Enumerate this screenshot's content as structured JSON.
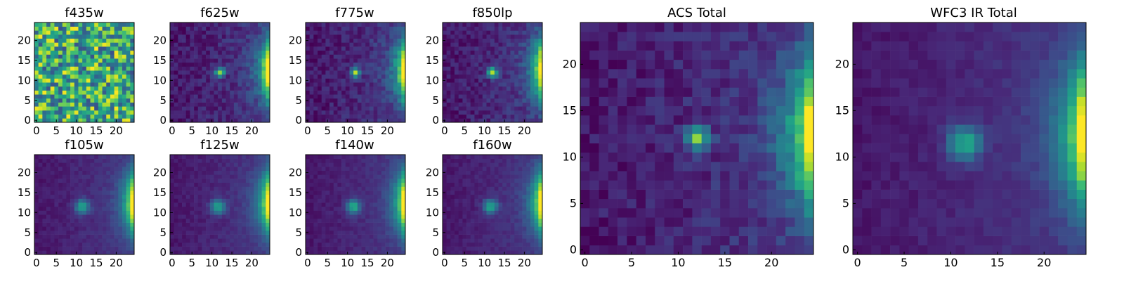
{
  "chart_data": [
    {
      "type": "heatmap",
      "title": "f435w",
      "pattern": "noise",
      "source_x": 12.5,
      "source_y": 11.5,
      "x_ticks": [
        "0",
        "5",
        "10",
        "15",
        "20"
      ],
      "y_ticks": [
        "0",
        "5",
        "10",
        "15",
        "20"
      ],
      "xlim": [
        -0.5,
        24.5
      ],
      "ylim": [
        -0.5,
        24.5
      ],
      "grid_size": 25,
      "colormap": "viridis"
    },
    {
      "type": "heatmap",
      "title": "f625w",
      "pattern": "point_source_edge",
      "source_x": 12.5,
      "source_y": 12.5,
      "x_ticks": [
        "0",
        "5",
        "10",
        "15",
        "20"
      ],
      "y_ticks": [
        "0",
        "5",
        "10",
        "15",
        "20"
      ],
      "xlim": [
        -0.5,
        24.5
      ],
      "ylim": [
        -0.5,
        24.5
      ],
      "grid_size": 25,
      "colormap": "viridis"
    },
    {
      "type": "heatmap",
      "title": "f775w",
      "pattern": "point_source_edge",
      "source_x": 12.5,
      "source_y": 12.5,
      "x_ticks": [
        "0",
        "5",
        "10",
        "15",
        "20"
      ],
      "y_ticks": [
        "0",
        "5",
        "10",
        "15",
        "20"
      ],
      "xlim": [
        -0.5,
        24.5
      ],
      "ylim": [
        -0.5,
        24.5
      ],
      "grid_size": 25,
      "colormap": "viridis"
    },
    {
      "type": "heatmap",
      "title": "f850lp",
      "pattern": "point_source_edge",
      "source_x": 12.5,
      "source_y": 12.5,
      "x_ticks": [
        "0",
        "5",
        "10",
        "15",
        "20"
      ],
      "y_ticks": [
        "0",
        "5",
        "10",
        "15",
        "20"
      ],
      "xlim": [
        -0.5,
        24.5
      ],
      "ylim": [
        -0.5,
        24.5
      ],
      "grid_size": 25,
      "colormap": "viridis"
    },
    {
      "type": "heatmap",
      "title": "f105w",
      "pattern": "point_source_edge",
      "source_x": 12,
      "source_y": 12,
      "x_ticks": [
        "0",
        "5",
        "10",
        "15",
        "20"
      ],
      "y_ticks": [
        "0",
        "5",
        "10",
        "15",
        "20"
      ],
      "xlim": [
        -0.5,
        24.5
      ],
      "ylim": [
        -0.5,
        24.5
      ],
      "grid_size": 25,
      "colormap": "viridis"
    },
    {
      "type": "heatmap",
      "title": "f125w",
      "pattern": "point_source_edge",
      "source_x": 12,
      "source_y": 12,
      "x_ticks": [
        "0",
        "5",
        "10",
        "15",
        "20"
      ],
      "y_ticks": [
        "0",
        "5",
        "10",
        "15",
        "20"
      ],
      "xlim": [
        -0.5,
        24.5
      ],
      "ylim": [
        -0.5,
        24.5
      ],
      "grid_size": 25,
      "colormap": "viridis"
    },
    {
      "type": "heatmap",
      "title": "f140w",
      "pattern": "point_source_edge",
      "source_x": 12,
      "source_y": 12,
      "x_ticks": [
        "0",
        "5",
        "10",
        "15",
        "20"
      ],
      "y_ticks": [
        "0",
        "5",
        "10",
        "15",
        "20"
      ],
      "xlim": [
        -0.5,
        24.5
      ],
      "ylim": [
        -0.5,
        24.5
      ],
      "grid_size": 25,
      "colormap": "viridis"
    },
    {
      "type": "heatmap",
      "title": "f160w",
      "pattern": "point_source_edge",
      "source_x": 12,
      "source_y": 12,
      "x_ticks": [
        "0",
        "5",
        "10",
        "15",
        "20"
      ],
      "y_ticks": [
        "0",
        "5",
        "10",
        "15",
        "20"
      ],
      "xlim": [
        -0.5,
        24.5
      ],
      "ylim": [
        -0.5,
        24.5
      ],
      "grid_size": 25,
      "colormap": "viridis"
    },
    {
      "type": "heatmap",
      "title": "ACS Total",
      "pattern": "point_source_edge",
      "source_x": 12.5,
      "source_y": 12.5,
      "x_ticks": [
        "0",
        "5",
        "10",
        "15",
        "20"
      ],
      "y_ticks": [
        "0",
        "5",
        "10",
        "15",
        "20"
      ],
      "xlim": [
        -0.5,
        24.5
      ],
      "ylim": [
        -0.5,
        24.5
      ],
      "grid_size": 25,
      "colormap": "viridis"
    },
    {
      "type": "heatmap",
      "title": "WFC3 IR Total",
      "pattern": "point_source_edge",
      "source_x": 12,
      "source_y": 12,
      "x_ticks": [
        "0",
        "5",
        "10",
        "15",
        "20"
      ],
      "y_ticks": [
        "0",
        "5",
        "10",
        "15",
        "20"
      ],
      "xlim": [
        -0.5,
        24.5
      ],
      "ylim": [
        -0.5,
        24.5
      ],
      "grid_size": 25,
      "colormap": "viridis"
    }
  ]
}
